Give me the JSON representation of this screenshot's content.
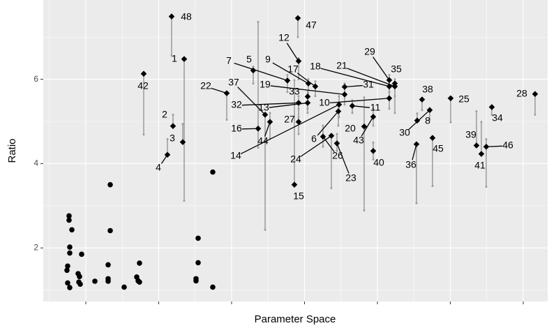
{
  "chart_data": {
    "type": "scatter",
    "xlabel": "Parameter Space",
    "ylabel": "Ratio",
    "xlim": [
      62,
      785
    ],
    "ylim": [
      0.73,
      7.88
    ],
    "xticks": [
      123,
      227.5,
      332,
      436.5,
      541,
      645.5,
      750
    ],
    "yticks": [
      2,
      4,
      6
    ],
    "grid": true,
    "series": [
      {
        "marker": "diamond",
        "color": "#000000",
        "errorbar_color": "#9e9e9e",
        "labels": [
          "1",
          "2",
          "3",
          "4",
          "5",
          "6",
          "7",
          "8",
          "9",
          "10",
          "11",
          "12",
          "13",
          "14",
          "15",
          "16",
          "17",
          "18",
          "19",
          "20",
          "21",
          "22",
          "23",
          "24",
          "25",
          "26",
          "27",
          "28",
          "29",
          "30",
          "31",
          "32",
          "33",
          "34",
          "35",
          "36",
          "37",
          "38",
          "39",
          "40",
          "41",
          "42",
          "43",
          "44",
          "45",
          "46",
          "47",
          "48"
        ],
        "x": [
          264,
          248,
          262,
          240,
          363,
          485,
          412,
          598,
          442,
          558,
          505,
          428,
          441,
          486,
          422,
          370,
          452,
          558,
          494,
          522,
          566,
          325,
          483,
          475,
          646,
          463,
          428,
          767,
          558,
          616,
          494,
          428,
          441,
          705,
          566,
          597,
          380,
          605,
          683,
          535,
          690,
          206,
          535,
          387,
          620,
          697,
          427,
          246
        ],
        "y": [
          6.48,
          4.89,
          4.51,
          4.21,
          6.21,
          5.24,
          5.97,
          5.02,
          5.9,
          5.55,
          5.37,
          6.43,
          5.44,
          5.4,
          3.5,
          4.83,
          5.83,
          5.83,
          5.64,
          4.88,
          5.83,
          5.67,
          4.48,
          4.66,
          5.55,
          4.64,
          4.99,
          5.65,
          5.98,
          5.27,
          5.82,
          5.44,
          5.59,
          5.34,
          5.9,
          4.46,
          5.16,
          5.52,
          4.43,
          4.3,
          4.23,
          6.13,
          5.11,
          4.99,
          4.61,
          4.4,
          7.45,
          7.49
        ],
        "ymin": [
          3.12,
          4.89,
          4.51,
          4.21,
          5.9,
          4.9,
          5.7,
          5.02,
          5.6,
          5.3,
          5.2,
          6.0,
          5.2,
          5.1,
          3.5,
          4.38,
          5.6,
          5.5,
          5.4,
          2.89,
          5.2,
          5.04,
          4.3,
          3.42,
          4.98,
          4.4,
          4.7,
          5.16,
          5.7,
          5.04,
          5.6,
          5.1,
          5.3,
          5.16,
          5.6,
          3.06,
          2.43,
          5.27,
          4.43,
          4.1,
          4.23,
          4.69,
          4.9,
          4.6,
          3.47,
          3.45,
          7.0,
          6.56
        ],
        "ymax": [
          6.48,
          5.16,
          4.94,
          4.58,
          6.3,
          5.4,
          6.1,
          5.19,
          6.0,
          5.7,
          5.5,
          6.5,
          5.6,
          5.6,
          5.98,
          7.36,
          5.95,
          6.0,
          5.8,
          5.57,
          5.9,
          5.67,
          4.7,
          4.66,
          5.55,
          4.9,
          5.3,
          5.65,
          6.1,
          5.27,
          5.9,
          5.6,
          5.7,
          5.34,
          6.0,
          4.46,
          5.16,
          5.52,
          5.24,
          4.5,
          4.99,
          6.13,
          5.3,
          5.2,
          4.61,
          4.58,
          7.45,
          7.49
        ]
      },
      {
        "marker": "circle",
        "color": "#000000",
        "x": [
          97,
          96,
          99,
          99,
          103,
          100,
          97,
          100,
          112,
          113,
          114,
          117,
          115,
          136,
          158,
          158,
          155,
          155,
          155,
          178,
          196,
          198,
          200,
          200,
          284,
          284,
          281,
          281,
          305,
          305,
          100
        ],
        "y": [
          1.57,
          1.47,
          2.76,
          2.66,
          2.43,
          1.88,
          1.17,
          1.06,
          1.39,
          1.19,
          1.32,
          1.85,
          1.14,
          1.21,
          3.5,
          2.41,
          1.6,
          1.27,
          1.21,
          1.07,
          1.31,
          1.22,
          1.64,
          1.19,
          2.23,
          1.65,
          1.27,
          1.22,
          3.8,
          1.07,
          2.02
        ]
      }
    ]
  }
}
